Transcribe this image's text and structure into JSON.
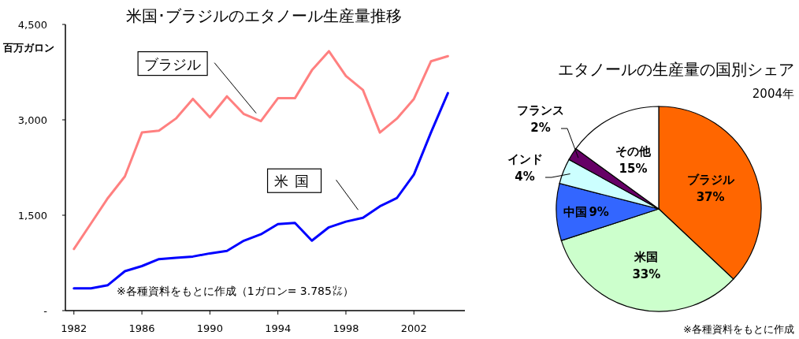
{
  "chart_data": [
    {
      "type": "line",
      "title": "米国･ブラジルのエタノール生産量推移",
      "ylabel": "百万ガロン",
      "x": [
        1982,
        1983,
        1984,
        1985,
        1986,
        1987,
        1988,
        1989,
        1990,
        1991,
        1992,
        1993,
        1994,
        1995,
        1996,
        1997,
        1998,
        1999,
        2000,
        2001,
        2002,
        2003,
        2004
      ],
      "series": [
        {
          "name": "ブラジル",
          "color": "#ff8080",
          "values": [
            970,
            1370,
            1770,
            2110,
            2800,
            2830,
            3020,
            3330,
            3040,
            3370,
            3090,
            2980,
            3340,
            3340,
            3780,
            4080,
            3690,
            3470,
            2800,
            3020,
            3330,
            3920,
            4000
          ]
        },
        {
          "name": "米国",
          "color": "#0000ff",
          "values": [
            350,
            350,
            400,
            620,
            700,
            810,
            830,
            850,
            900,
            940,
            1100,
            1200,
            1360,
            1380,
            1100,
            1310,
            1400,
            1460,
            1640,
            1770,
            2140,
            2800,
            3420
          ]
        }
      ],
      "xlim": [
        1981.5,
        2005
      ],
      "xticks": [
        1982,
        1986,
        1990,
        1994,
        1998,
        2002
      ],
      "ylim": [
        0,
        4500
      ],
      "yticks": [
        {
          "value": 0,
          "label": "-"
        },
        {
          "value": 1500,
          "label": "1,500"
        },
        {
          "value": 3000,
          "label": "3,000"
        },
        {
          "value": 4500,
          "label": "4,500"
        }
      ],
      "grid": false,
      "legend": false,
      "marker": "none",
      "line_style": "solid",
      "annotations": [
        "※各種資料をもとに作成（1ガロン= 3.785㍑）"
      ]
    },
    {
      "type": "pie",
      "title": "エタノールの生産量の国別シェア",
      "subtitle": "2004年",
      "categories": [
        "ブラジル",
        "米国",
        "中国",
        "インド",
        "フランス",
        "その他"
      ],
      "values": [
        37,
        33,
        9,
        4,
        2,
        15
      ],
      "colors": [
        "#ff6600",
        "#ccffcc",
        "#3366ff",
        "#ccffff",
        "#660066",
        "#ffffff"
      ],
      "value_labels": [
        "37%",
        "33%",
        "9%",
        "4%",
        "2%",
        "15%"
      ],
      "annotations": [
        "※各種資料をもとに作成"
      ]
    }
  ]
}
